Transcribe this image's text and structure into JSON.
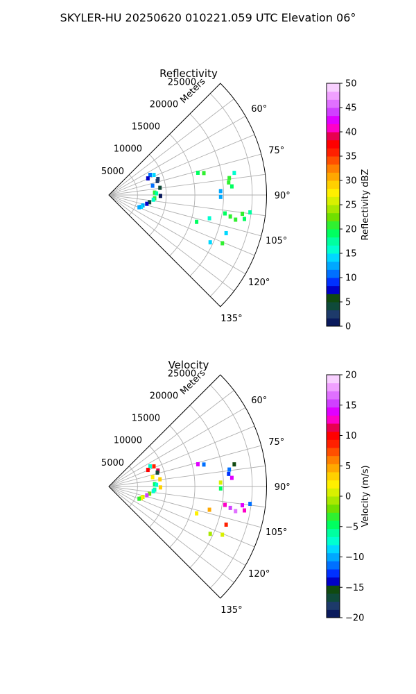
{
  "figure": {
    "title": "SKYLER-HU  20250620  010221.059 UTC Elevation 06°"
  },
  "chart_data": [
    {
      "type": "polar-sector",
      "title": "Reflectivity",
      "radial_label": "Meters",
      "r_ticks": [
        "5000",
        "10000",
        "15000",
        "20000",
        "25000"
      ],
      "r_tick_values": [
        5000,
        10000,
        15000,
        20000,
        25000
      ],
      "r_max": 27500,
      "theta_range_deg": [
        45,
        135
      ],
      "theta_ticks": [
        "60°",
        "75°",
        "90°",
        "105°",
        "120°",
        "135°"
      ],
      "theta_tick_values": [
        60,
        75,
        90,
        105,
        120,
        135
      ],
      "grid": true,
      "colorbar": {
        "label": "Reflectivity dBZ",
        "min": 0,
        "max": 50,
        "ticks": [
          "0",
          "5",
          "10",
          "15",
          "20",
          "25",
          "30",
          "35",
          "40",
          "45",
          "50"
        ],
        "colors": [
          "#0a1a5c",
          "#1d3a6a",
          "#0f4a3a",
          "#104a10",
          "#0000c8",
          "#0030ff",
          "#0070ff",
          "#00a8ff",
          "#00d8ff",
          "#00ffd0",
          "#00ffa0",
          "#00ff60",
          "#30f030",
          "#70e000",
          "#a8e800",
          "#d8f000",
          "#fff000",
          "#ffd000",
          "#ffa800",
          "#ff8000",
          "#ff5000",
          "#ff2000",
          "#ff0000",
          "#e80050",
          "#ff00c8",
          "#e000ff",
          "#d040ff",
          "#e070ff",
          "#f0a0ff",
          "#f8d0ff"
        ]
      },
      "gates": [
        {
          "az": 64,
          "r": 8000,
          "dbz": 11
        },
        {
          "az": 66,
          "r": 8600,
          "dbz": 14
        },
        {
          "az": 67,
          "r": 7400,
          "dbz": 7
        },
        {
          "az": 72,
          "r": 9000,
          "dbz": 3
        },
        {
          "az": 74,
          "r": 8800,
          "dbz": 2
        },
        {
          "az": 78,
          "r": 7800,
          "dbz": 11
        },
        {
          "az": 82,
          "r": 9000,
          "dbz": 4
        },
        {
          "az": 87,
          "r": 8000,
          "dbz": 20
        },
        {
          "az": 88,
          "r": 8300,
          "dbz": 17
        },
        {
          "az": 91,
          "r": 9000,
          "dbz": 0
        },
        {
          "az": 94,
          "r": 8000,
          "dbz": 20
        },
        {
          "az": 96,
          "r": 7800,
          "dbz": 16
        },
        {
          "az": 100,
          "r": 7200,
          "dbz": 4
        },
        {
          "az": 103,
          "r": 6800,
          "dbz": 8
        },
        {
          "az": 107,
          "r": 6200,
          "dbz": 12
        },
        {
          "az": 110,
          "r": 6000,
          "dbz": 14
        },
        {
          "az": 112,
          "r": 5700,
          "dbz": 12
        },
        {
          "az": 76,
          "r": 16000,
          "dbz": 19
        },
        {
          "az": 77,
          "r": 17000,
          "dbz": 20
        },
        {
          "az": 82,
          "r": 21200,
          "dbz": 20
        },
        {
          "az": 84,
          "r": 21000,
          "dbz": 21
        },
        {
          "az": 86,
          "r": 21500,
          "dbz": 19
        },
        {
          "az": 80,
          "r": 22200,
          "dbz": 16
        },
        {
          "az": 88,
          "r": 19500,
          "dbz": 13
        },
        {
          "az": 91,
          "r": 19500,
          "dbz": 12
        },
        {
          "az": 99,
          "r": 20500,
          "dbz": 19
        },
        {
          "az": 100,
          "r": 21500,
          "dbz": 20
        },
        {
          "az": 101,
          "r": 22500,
          "dbz": 21
        },
        {
          "az": 98,
          "r": 23500,
          "dbz": 20
        },
        {
          "az": 100,
          "r": 24000,
          "dbz": 19
        },
        {
          "az": 97,
          "r": 24800,
          "dbz": 18
        },
        {
          "az": 103,
          "r": 18000,
          "dbz": 15
        },
        {
          "az": 107,
          "r": 16000,
          "dbz": 19
        },
        {
          "az": 108,
          "r": 21500,
          "dbz": 14
        },
        {
          "az": 113,
          "r": 21500,
          "dbz": 20
        },
        {
          "az": 115,
          "r": 19500,
          "dbz": 14
        }
      ]
    },
    {
      "type": "polar-sector",
      "title": "Velocity",
      "radial_label": "Meters",
      "r_ticks": [
        "5000",
        "10000",
        "15000",
        "20000",
        "25000"
      ],
      "r_tick_values": [
        5000,
        10000,
        15000,
        20000,
        25000
      ],
      "r_max": 27500,
      "theta_range_deg": [
        45,
        135
      ],
      "theta_ticks": [
        "60°",
        "75°",
        "90°",
        "105°",
        "120°",
        "135°"
      ],
      "theta_tick_values": [
        60,
        75,
        90,
        105,
        120,
        135
      ],
      "grid": true,
      "colorbar": {
        "label": "Velocity (m/s)",
        "min": -20,
        "max": 20,
        "ticks": [
          "−20",
          "−15",
          "−10",
          "−5",
          "0",
          "5",
          "10",
          "15",
          "20"
        ],
        "colors": [
          "#0a1a5c",
          "#1d3a6a",
          "#0f4a3a",
          "#104a10",
          "#0000c8",
          "#0030ff",
          "#0070ff",
          "#00a8ff",
          "#00d8ff",
          "#00ffd0",
          "#00ffa0",
          "#00ff60",
          "#30f030",
          "#70e000",
          "#a8e800",
          "#d8f000",
          "#fff000",
          "#ffd000",
          "#ffa800",
          "#ff8000",
          "#ff5000",
          "#ff2000",
          "#ff0000",
          "#e80050",
          "#ff00c8",
          "#e000ff",
          "#d040ff",
          "#e070ff",
          "#f0a0ff",
          "#f8d0ff"
        ]
      },
      "gates": [
        {
          "az": 64,
          "r": 8000,
          "vel": -7
        },
        {
          "az": 66,
          "r": 8600,
          "vel": 9
        },
        {
          "az": 67,
          "r": 7400,
          "vel": 10
        },
        {
          "az": 72,
          "r": 9000,
          "vel": 11
        },
        {
          "az": 74,
          "r": 8800,
          "vel": -17
        },
        {
          "az": 78,
          "r": 7800,
          "vel": 2
        },
        {
          "az": 82,
          "r": 9000,
          "vel": 3
        },
        {
          "az": 87,
          "r": 8000,
          "vel": -5
        },
        {
          "az": 88,
          "r": 8300,
          "vel": -7
        },
        {
          "az": 91,
          "r": 9000,
          "vel": 3
        },
        {
          "az": 94,
          "r": 8000,
          "vel": -6
        },
        {
          "az": 96,
          "r": 7800,
          "vel": -7
        },
        {
          "az": 100,
          "r": 7200,
          "vel": -2
        },
        {
          "az": 103,
          "r": 6800,
          "vel": 15
        },
        {
          "az": 107,
          "r": 6200,
          "vel": 0
        },
        {
          "az": 110,
          "r": 6000,
          "vel": 2
        },
        {
          "az": 112,
          "r": 5700,
          "vel": -3
        },
        {
          "az": 76,
          "r": 16000,
          "vel": 14
        },
        {
          "az": 77,
          "r": 17000,
          "vel": -11
        },
        {
          "az": 82,
          "r": 21200,
          "vel": -11
        },
        {
          "az": 84,
          "r": 21000,
          "vel": -13
        },
        {
          "az": 86,
          "r": 21500,
          "vel": 14
        },
        {
          "az": 80,
          "r": 22200,
          "vel": -16
        },
        {
          "az": 88,
          "r": 19500,
          "vel": 0
        },
        {
          "az": 91,
          "r": 19500,
          "vel": -5
        },
        {
          "az": 99,
          "r": 20500,
          "vel": 13
        },
        {
          "az": 100,
          "r": 21500,
          "vel": 15
        },
        {
          "az": 101,
          "r": 22500,
          "vel": 16
        },
        {
          "az": 98,
          "r": 23500,
          "vel": 14
        },
        {
          "az": 100,
          "r": 24000,
          "vel": 12
        },
        {
          "az": 97,
          "r": 24800,
          "vel": -12
        },
        {
          "az": 103,
          "r": 18000,
          "vel": 4
        },
        {
          "az": 107,
          "r": 16000,
          "vel": 2
        },
        {
          "az": 108,
          "r": 21500,
          "vel": 9
        },
        {
          "az": 113,
          "r": 21500,
          "vel": 1
        },
        {
          "az": 115,
          "r": 19500,
          "vel": -1
        }
      ]
    }
  ]
}
